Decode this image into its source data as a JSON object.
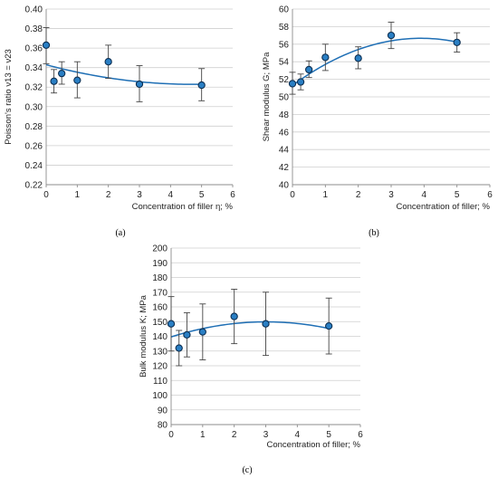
{
  "chart_data": [
    {
      "id": "a",
      "type": "scatter",
      "panel_label": "(a)",
      "xlabel": "Concentration of filler η; %",
      "ylabel": "Poisson's  ratio ν13 = ν23",
      "xlim": [
        0,
        6
      ],
      "ylim": [
        0.22,
        0.4
      ],
      "x_ticks": [
        0,
        1,
        2,
        3,
        4,
        5,
        6
      ],
      "y_ticks": [
        "0.22",
        "0.24",
        "0.26",
        "0.28",
        "0.30",
        "0.32",
        "0.34",
        "0.36",
        "0.38",
        "0.40"
      ],
      "grid": "horizontal",
      "points": [
        {
          "x": 0,
          "y": 0.363,
          "err_low": 0.344,
          "err_high": 0.381
        },
        {
          "x": 0.25,
          "y": 0.326,
          "err_low": 0.314,
          "err_high": 0.338
        },
        {
          "x": 0.5,
          "y": 0.334,
          "err_low": 0.323,
          "err_high": 0.346
        },
        {
          "x": 1,
          "y": 0.327,
          "err_low": 0.309,
          "err_high": 0.346
        },
        {
          "x": 2,
          "y": 0.346,
          "err_low": 0.329,
          "err_high": 0.363
        },
        {
          "x": 3,
          "y": 0.323,
          "err_low": 0.305,
          "err_high": 0.342
        },
        {
          "x": 5,
          "y": 0.322,
          "err_low": 0.306,
          "err_high": 0.339
        }
      ],
      "trendline": {
        "x_range": [
          0,
          5
        ],
        "coeffs": [
          0.3429,
          -0.0085,
          0.0009
        ]
      }
    },
    {
      "id": "b",
      "type": "scatter",
      "panel_label": "(b)",
      "xlabel": "Concentration of filler; %",
      "ylabel": "Shear modulus  G; MPa",
      "xlim": [
        0,
        6
      ],
      "ylim": [
        40,
        60
      ],
      "x_ticks": [
        0,
        1,
        2,
        3,
        4,
        5,
        6
      ],
      "y_ticks": [
        "40",
        "42",
        "44",
        "46",
        "48",
        "50",
        "52",
        "54",
        "56",
        "58",
        "60"
      ],
      "grid": "horizontal",
      "points": [
        {
          "x": 0,
          "y": 51.5,
          "err_low": 50.3,
          "err_high": 52.8
        },
        {
          "x": 0.25,
          "y": 51.7,
          "err_low": 50.8,
          "err_high": 52.6
        },
        {
          "x": 0.5,
          "y": 53.1,
          "err_low": 52.2,
          "err_high": 54.1
        },
        {
          "x": 1,
          "y": 54.5,
          "err_low": 53.0,
          "err_high": 56.0
        },
        {
          "x": 2,
          "y": 54.4,
          "err_low": 53.2,
          "err_high": 55.7
        },
        {
          "x": 3,
          "y": 57.0,
          "err_low": 55.5,
          "err_high": 58.5
        },
        {
          "x": 5,
          "y": 56.2,
          "err_low": 55.1,
          "err_high": 57.3
        }
      ],
      "trendline": {
        "x_range": [
          0,
          5
        ],
        "coeffs": [
          51.3,
          2.75,
          -0.352
        ]
      }
    },
    {
      "id": "c",
      "type": "scatter",
      "panel_label": "(c)",
      "xlabel": "Concentration of filler; %",
      "ylabel": "Bulk modulus  K; MPa",
      "xlim": [
        0,
        6
      ],
      "ylim": [
        80,
        200
      ],
      "x_ticks": [
        0,
        1,
        2,
        3,
        4,
        5,
        6
      ],
      "y_ticks": [
        "80",
        "90",
        "100",
        "110",
        "120",
        "130",
        "140",
        "150",
        "160",
        "170",
        "180",
        "190",
        "200"
      ],
      "grid": "horizontal",
      "points": [
        {
          "x": 0,
          "y": 148.5,
          "err_low": 130,
          "err_high": 167
        },
        {
          "x": 0.25,
          "y": 132,
          "err_low": 120,
          "err_high": 144
        },
        {
          "x": 0.5,
          "y": 141,
          "err_low": 126,
          "err_high": 156
        },
        {
          "x": 1,
          "y": 143,
          "err_low": 124,
          "err_high": 162
        },
        {
          "x": 2,
          "y": 153.5,
          "err_low": 135,
          "err_high": 172
        },
        {
          "x": 3,
          "y": 148.5,
          "err_low": 127,
          "err_high": 170
        },
        {
          "x": 5,
          "y": 147,
          "err_low": 128,
          "err_high": 166
        }
      ],
      "trendline": {
        "x_range": [
          0,
          5
        ],
        "coeffs": [
          139.6,
          6.8,
          -1.13
        ]
      }
    }
  ]
}
